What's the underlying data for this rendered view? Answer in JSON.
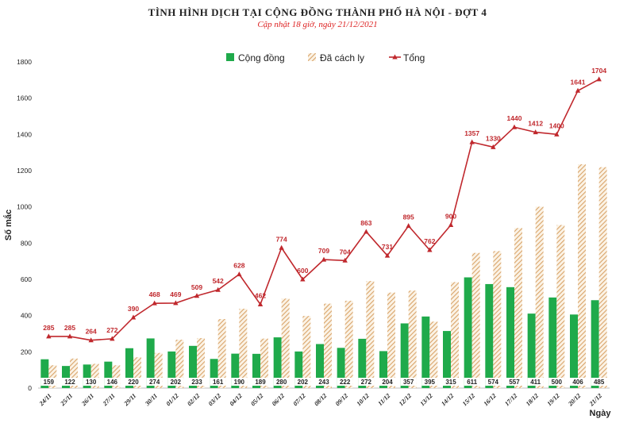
{
  "chart_data": {
    "type": "bar",
    "title": "TÌNH HÌNH DỊCH TẠI CỘNG ĐỒNG THÀNH PHỐ HÀ NỘI - ĐỢT 4",
    "subtitle": "Cập nhật 18 giờ, ngày 21/12/2021",
    "ylabel": "Số mắc",
    "xlabel": "Ngày",
    "ylim": [
      0,
      1800
    ],
    "yticks": [
      0,
      200,
      400,
      600,
      800,
      1000,
      1200,
      1400,
      1600,
      1800
    ],
    "legend_position": "top",
    "categories": [
      "24/11",
      "25/11",
      "26/11",
      "27/11",
      "29/11",
      "30/11",
      "01/12",
      "02/12",
      "03/12",
      "04/12",
      "05/12",
      "06/12",
      "07/12",
      "08/12",
      "09/12",
      "10/12",
      "11/12",
      "12/12",
      "13/12",
      "14/12",
      "15/12",
      "16/12",
      "17/12",
      "18/12",
      "19/12",
      "20/12",
      "21/12"
    ],
    "series": [
      {
        "name": "Cộng đồng",
        "type": "bar",
        "color": "#1faa4b",
        "values": [
          159,
          122,
          130,
          146,
          220,
          274,
          202,
          233,
          161,
          190,
          189,
          280,
          202,
          243,
          222,
          272,
          204,
          357,
          395,
          315,
          611,
          574,
          557,
          411,
          500,
          406,
          485
        ]
      },
      {
        "name": "Đã cách ly",
        "type": "bar",
        "color": "#d9a46a",
        "values": [
          126,
          163,
          134,
          126,
          170,
          194,
          267,
          276,
          381,
          438,
          273,
          494,
          398,
          466,
          482,
          591,
          527,
          538,
          367,
          585,
          746,
          756,
          883,
          1001,
          900,
          1235,
          1219
        ]
      },
      {
        "name": "Tổng",
        "type": "line",
        "color": "#c0282d",
        "values": [
          285,
          285,
          264,
          272,
          390,
          468,
          469,
          509,
          542,
          628,
          462,
          774,
          600,
          709,
          704,
          863,
          731,
          895,
          762,
          900,
          1357,
          1330,
          1440,
          1412,
          1400,
          1641,
          1704
        ]
      }
    ]
  }
}
